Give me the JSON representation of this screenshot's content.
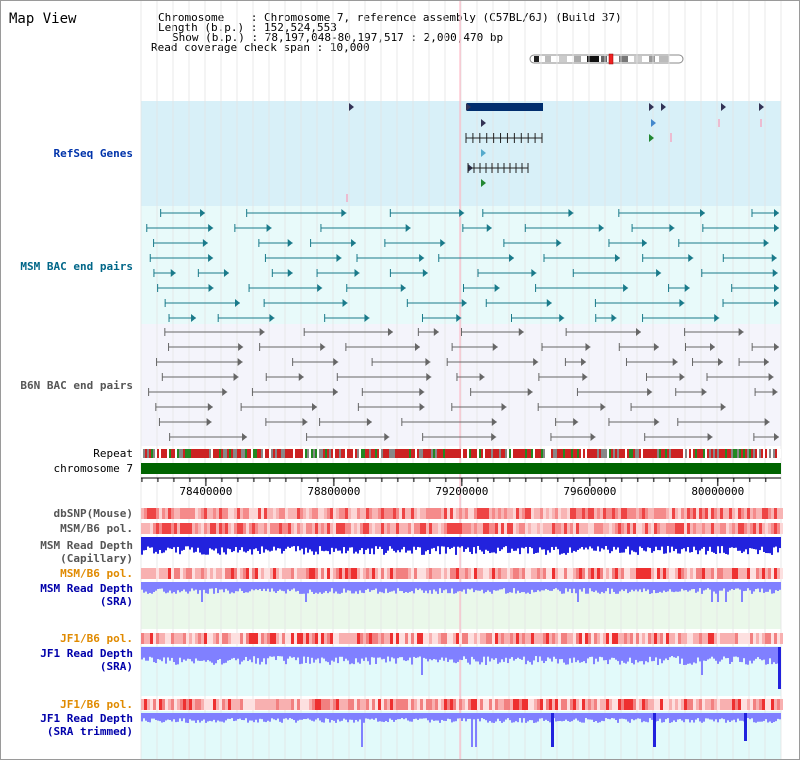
{
  "view_title": "Map View",
  "info": {
    "chromosome_key": "Chromosome",
    "chromosome_value": "Chromosome 7, reference assembly (C57BL/6J) (Build 37)",
    "length_key": "Length (b.p.)",
    "length_value": "152,524,553",
    "show_key": "Show (b.p.)",
    "show_value": "78,197,048-80,197,517 : 2,000,470 bp",
    "coverage_key": "Read coverage check span",
    "coverage_value": "10,000"
  },
  "tracks": {
    "refseq": "RefSeq Genes",
    "msm_bac": "MSM BAC end pairs",
    "b6n_bac": "B6N BAC end pairs",
    "repeat": "Repeat",
    "chromosome": "chromosome 7",
    "dbsnp": "dbSNP(Mouse)",
    "msm_pol_1": "MSM/B6 pol.",
    "msm_cap_1": "MSM Read Depth",
    "msm_cap_2": "(Capillary)",
    "msm_pol_2": "MSM/B6 pol.",
    "msm_sra_1": "MSM Read Depth",
    "msm_sra_2": "(SRA)",
    "jf1_pol_1": "JF1/B6 pol.",
    "jf1_sra_1": "JF1 Read Depth",
    "jf1_sra_2": "(SRA)",
    "jf1_pol_2": "JF1/B6 pol.",
    "jf1_trim_1": "JF1 Read Depth",
    "jf1_trim_2": "(SRA trimmed)"
  },
  "axis": {
    "ticks": [
      {
        "label": "78400000",
        "value": 78400000
      },
      {
        "label": "78800000",
        "value": 78800000
      },
      {
        "label": "79200000",
        "value": 79200000
      },
      {
        "label": "79600000",
        "value": 79600000
      },
      {
        "label": "80000000",
        "value": 80000000
      }
    ],
    "range": [
      78197048,
      80197517
    ]
  },
  "colors": {
    "refseq_label": "#0033aa",
    "msm_bac_label": "#006688",
    "b6n_bac_label": "#555555",
    "orange_label": "#e08a00",
    "blue_label": "#0000aa",
    "chromosome_bar": "#006400",
    "depth_blue": "#2222dd",
    "depth_light": "#8080ff"
  }
}
